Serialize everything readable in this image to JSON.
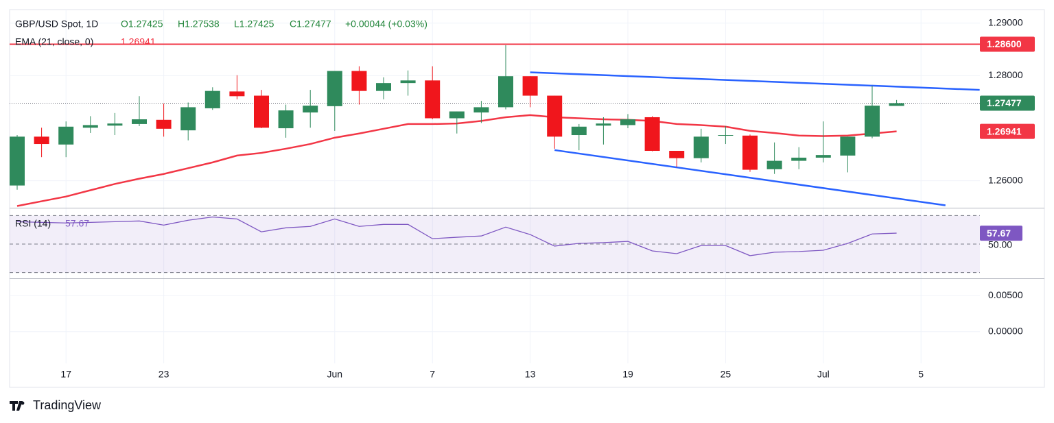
{
  "chart_data": {
    "type": "candlestick",
    "title": "GBP/USD Spot, 1D",
    "header_values": [
      "O1.27425",
      "H1.27538",
      "L1.27425",
      "C1.27477",
      "+0.00044 (+0.03%)"
    ],
    "categories": [
      null,
      null,
      "17",
      null,
      null,
      null,
      "23",
      null,
      null,
      null,
      null,
      null,
      null,
      "Jun",
      null,
      null,
      null,
      "7",
      null,
      null,
      null,
      "13",
      null,
      null,
      null,
      "19",
      null,
      null,
      null,
      "25",
      null,
      null,
      null,
      "Jul",
      null,
      null,
      null,
      "5"
    ],
    "open": [
      1.2591,
      1.2684,
      1.2669,
      1.2701,
      1.2705,
      1.2708,
      1.2716,
      1.2696,
      1.2738,
      1.277,
      1.2762,
      1.27,
      1.273,
      1.2742,
      1.2809,
      1.2771,
      1.2786,
      1.2791,
      1.2719,
      1.273,
      1.274,
      1.2799,
      1.2762,
      1.2687,
      1.2705,
      1.2706,
      1.2721,
      1.2657,
      1.2643,
      1.2686,
      1.2686,
      1.2622,
      1.2638,
      1.2644,
      1.2648,
      1.2684,
      1.27425,
      null
    ],
    "high": [
      1.2687,
      1.2701,
      1.2713,
      1.2723,
      1.2729,
      1.2761,
      1.2747,
      1.2749,
      1.2778,
      1.2801,
      1.2773,
      1.2745,
      1.2773,
      1.2809,
      1.2818,
      1.2797,
      1.281,
      1.2818,
      1.2732,
      1.2752,
      1.2858,
      1.2799,
      1.2762,
      1.2708,
      1.2721,
      1.2727,
      1.2723,
      1.2657,
      1.2699,
      1.2704,
      1.2688,
      1.2673,
      1.2664,
      1.2713,
      1.2684,
      1.2781,
      1.27538,
      null
    ],
    "low": [
      1.2583,
      1.2645,
      1.2645,
      1.2691,
      1.2687,
      1.2704,
      1.2684,
      1.2677,
      1.2735,
      1.2755,
      1.27,
      1.2682,
      1.2701,
      1.2695,
      1.2745,
      1.2755,
      1.2762,
      1.2717,
      1.269,
      1.271,
      1.2736,
      1.274,
      1.2661,
      1.2658,
      1.2669,
      1.27,
      1.2656,
      1.2626,
      1.2635,
      1.267,
      1.2617,
      1.2613,
      1.2622,
      1.2635,
      1.2616,
      1.2681,
      1.27425,
      null
    ],
    "close": [
      1.2684,
      1.267,
      1.2703,
      1.2706,
      1.2709,
      1.2717,
      1.2699,
      1.274,
      1.2771,
      1.2761,
      1.2701,
      1.2734,
      1.2743,
      1.2809,
      1.2771,
      1.2786,
      1.2791,
      1.2719,
      1.2732,
      1.274,
      1.2799,
      1.2762,
      1.2684,
      1.2703,
      1.2709,
      1.2717,
      1.2657,
      1.2643,
      1.2684,
      1.2687,
      1.2621,
      1.2638,
      1.2644,
      1.2649,
      1.2684,
      1.2743,
      1.27477,
      null
    ],
    "up_color": "#2f8a5c",
    "down_color": "#f0161c",
    "ylim": [
      1.255,
      1.2918
    ],
    "yticks": [
      {
        "value": 1.29,
        "label": "1.29000"
      },
      {
        "value": 1.28,
        "label": "1.28000"
      },
      {
        "value": 1.26,
        "label": "1.26000"
      }
    ],
    "grid": true,
    "last_price": {
      "value": 1.27477,
      "label": "1.27477"
    },
    "hline": {
      "value": 1.286,
      "label": "1.28600",
      "color": "#f23645"
    },
    "overlays": [
      {
        "name": "EMA (21, close, 0)",
        "color": "#f23645",
        "last_label": "1.26941",
        "values": [
          1.2552,
          1.2561,
          1.257,
          1.2582,
          1.2594,
          1.2604,
          1.2613,
          1.2624,
          1.2635,
          1.2648,
          1.2653,
          1.2661,
          1.267,
          1.2682,
          1.269,
          1.2699,
          1.2708,
          1.2708,
          1.2709,
          1.2714,
          1.2721,
          1.2725,
          1.2721,
          1.2719,
          1.2717,
          1.2716,
          1.2714,
          1.2708,
          1.2706,
          1.2703,
          1.2695,
          1.2691,
          1.2686,
          1.2685,
          1.2686,
          1.269,
          1.26941,
          null
        ]
      }
    ],
    "trendlines": [
      {
        "x": [
          21,
          39.4
        ],
        "y": [
          1.28065,
          1.2773
        ],
        "color": "#2962ff"
      },
      {
        "x": [
          22,
          38.0
        ],
        "y": [
          1.26584,
          1.25532
        ],
        "color": "#2962ff"
      }
    ],
    "rsi": {
      "name": "RSI (14)",
      "value_label": "57.67",
      "color": "#7e57c2",
      "values": [
        65.7,
        65.2,
        64.8,
        65.2,
        65.7,
        66.2,
        63.3,
        66.7,
        69.0,
        67.6,
        58.6,
        61.4,
        62.4,
        67.6,
        62.4,
        63.8,
        63.8,
        53.8,
        54.8,
        55.7,
        61.9,
        56.7,
        48.6,
        50.5,
        51.0,
        51.9,
        45.2,
        43.3,
        49.0,
        49.0,
        41.9,
        44.3,
        44.8,
        45.7,
        50.5,
        57.1,
        57.67,
        null
      ],
      "ylim": [
        26,
        75
      ],
      "yticks": [
        {
          "value": 50,
          "label": "50.00"
        }
      ],
      "levels": [
        70,
        50,
        30
      ]
    },
    "lower_pane": {
      "ylim": [
        -0.0044,
        0.0073
      ],
      "yticks": [
        {
          "value": 0.005,
          "label": "0.00500"
        },
        {
          "value": 0,
          "label": "0.00000"
        }
      ]
    },
    "branding": "TradingView"
  }
}
